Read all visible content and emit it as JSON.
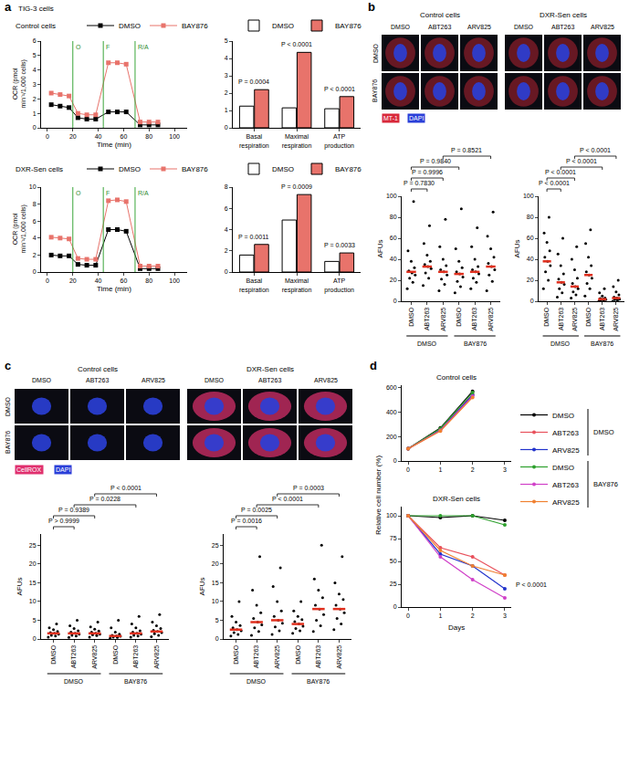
{
  "figure": {
    "panels": [
      {
        "letter": "a",
        "title": "TIG-3 cells"
      },
      {
        "letter": "b"
      },
      {
        "letter": "c"
      },
      {
        "letter": "d"
      }
    ],
    "image_grids": [
      {
        "groups": [
          "Control cells",
          "DXR-Sen cells"
        ],
        "columns": [
          "DMSO",
          "ABT263",
          "ARV825"
        ],
        "rows": [
          "DMSO",
          "BAY876"
        ],
        "stains": [
          {
            "text": "MT-1",
            "color": "#d8283a"
          },
          {
            "text": "DAPI",
            "color": "#2a3fd8"
          }
        ]
      },
      {
        "groups": [
          "Control cells",
          "DXR-Sen cells"
        ],
        "columns": [
          "DMSO",
          "ABT263",
          "ARV825"
        ],
        "rows": [
          "DMSO",
          "BAY876"
        ],
        "stains": [
          {
            "text": "CellROX",
            "color": "#e0306e"
          },
          {
            "text": "DAPI",
            "color": "#2a3fd8"
          }
        ]
      }
    ]
  },
  "chart_data": [
    {
      "type": "line",
      "title": "Control cells",
      "x": [
        3,
        10,
        17,
        24,
        31,
        38,
        48,
        55,
        62,
        73,
        80,
        87
      ],
      "xlim": [
        -5,
        110
      ],
      "xticks": [
        0,
        20,
        40,
        60,
        80,
        100
      ],
      "ylim": [
        0,
        6
      ],
      "yticks": [
        0,
        1,
        2,
        3,
        4,
        5,
        6
      ],
      "xlabel": "Time (min)",
      "ylabel": "OCR (pmol min⁻¹/1,000 cells)",
      "marker": "square",
      "legend": "top",
      "annotations": [
        {
          "x": 20,
          "text": "O"
        },
        {
          "x": 44,
          "text": "F"
        },
        {
          "x": 69,
          "text": "R/A"
        }
      ],
      "series": [
        {
          "name": "DMSO",
          "color": "#000000",
          "values": [
            1.6,
            1.5,
            1.4,
            0.7,
            0.6,
            0.6,
            1.1,
            1.1,
            1.1,
            0.2,
            0.2,
            0.2
          ]
        },
        {
          "name": "BAY876",
          "color": "#e8736b",
          "values": [
            2.4,
            2.3,
            2.2,
            1.0,
            0.9,
            0.9,
            4.5,
            4.5,
            4.4,
            0.4,
            0.4,
            0.4
          ]
        }
      ]
    },
    {
      "type": "line",
      "title": "DXR-Sen cells",
      "x": [
        3,
        10,
        17,
        24,
        31,
        38,
        48,
        55,
        62,
        73,
        80,
        87
      ],
      "xlim": [
        -5,
        110
      ],
      "xticks": [
        0,
        20,
        40,
        60,
        80,
        100
      ],
      "ylim": [
        0,
        10
      ],
      "yticks": [
        0,
        2,
        4,
        6,
        8,
        10
      ],
      "xlabel": "Time (min)",
      "ylabel": "OCR (pmol min⁻¹/1,000 cells)",
      "marker": "square",
      "legend": "top",
      "annotations": [
        {
          "x": 20,
          "text": "O"
        },
        {
          "x": 44,
          "text": "F"
        },
        {
          "x": 69,
          "text": "R/A"
        }
      ],
      "series": [
        {
          "name": "DMSO",
          "color": "#000000",
          "values": [
            2.0,
            1.9,
            1.9,
            0.9,
            0.8,
            0.8,
            5.0,
            5.0,
            4.8,
            0.4,
            0.4,
            0.4
          ]
        },
        {
          "name": "BAY876",
          "color": "#e8736b",
          "values": [
            4.1,
            4.0,
            3.9,
            1.6,
            1.5,
            1.5,
            8.4,
            8.5,
            8.3,
            0.7,
            0.7,
            0.7
          ]
        }
      ]
    },
    {
      "type": "bar",
      "categories": [
        "Basal respiration",
        "Maximal respiration",
        "ATP production"
      ],
      "ylim": [
        0,
        5
      ],
      "yticks": [
        0,
        1,
        2,
        3,
        4,
        5
      ],
      "legend": "top",
      "series": [
        {
          "name": "DMSO",
          "color": "#ffffff",
          "values": [
            1.25,
            1.15,
            1.1
          ]
        },
        {
          "name": "BAY876",
          "color": "#e8736b",
          "values": [
            2.2,
            4.35,
            1.8
          ]
        }
      ],
      "p_values": [
        "P = 0.0004",
        "P < 0.0001",
        "P < 0.0001"
      ]
    },
    {
      "type": "bar",
      "categories": [
        "Basal respiration",
        "Maximal respiration",
        "ATP production"
      ],
      "ylim": [
        0,
        8
      ],
      "yticks": [
        0,
        2,
        4,
        6,
        8
      ],
      "legend": "top",
      "series": [
        {
          "name": "DMSO",
          "color": "#ffffff",
          "values": [
            1.6,
            4.9,
            1.0
          ]
        },
        {
          "name": "BAY876",
          "color": "#e8736b",
          "values": [
            2.6,
            7.3,
            1.8
          ]
        }
      ],
      "p_values": [
        "P = 0.0011",
        "P = 0.0009",
        "P = 0.0033"
      ]
    },
    {
      "type": "dot",
      "categories": [
        "DMSO",
        "ABT263",
        "ARV825",
        "DMSO",
        "ABT263",
        "ARV825"
      ],
      "groups": [
        {
          "label": "DMSO",
          "from": 0,
          "to": 2
        },
        {
          "label": "BAY876",
          "from": 3,
          "to": 5
        }
      ],
      "ylabel": "AFUs",
      "ylim": [
        0,
        100
      ],
      "yticks": [
        0,
        20,
        40,
        60,
        80,
        100
      ],
      "color": "#000000",
      "points": [
        [
          12,
          18,
          22,
          25,
          27,
          29,
          32,
          38,
          48,
          95
        ],
        [
          15,
          22,
          27,
          31,
          33,
          35,
          38,
          44,
          55,
          72
        ],
        [
          10,
          16,
          21,
          25,
          28,
          30,
          34,
          40,
          52,
          78
        ],
        [
          8,
          14,
          19,
          23,
          26,
          28,
          32,
          38,
          50,
          88
        ],
        [
          12,
          18,
          22,
          26,
          28,
          30,
          33,
          40,
          52,
          70
        ],
        [
          10,
          19,
          25,
          30,
          33,
          36,
          42,
          50,
          62,
          85
        ]
      ],
      "medians": [
        28,
        33,
        28,
        26,
        28,
        33
      ],
      "comparisons": [
        {
          "from": 0,
          "to": 1,
          "text": "P = 0.7830"
        },
        {
          "from": 0,
          "to": 2,
          "text": "P = 0.9996"
        },
        {
          "from": 0,
          "to": 3,
          "text": "P = 0.9840"
        },
        {
          "from": 2,
          "to": 5,
          "text": "P = 0.8521"
        }
      ]
    },
    {
      "type": "dot",
      "categories": [
        "DMSO",
        "ABT263",
        "ARV825",
        "DMSO",
        "ABT263",
        "ARV825"
      ],
      "groups": [
        {
          "label": "DMSO",
          "from": 0,
          "to": 2
        },
        {
          "label": "BAY876",
          "from": 3,
          "to": 5
        }
      ],
      "ylabel": "AFUs",
      "ylim": [
        0,
        100
      ],
      "yticks": [
        0,
        20,
        40,
        60,
        80,
        100
      ],
      "color": "#000000",
      "points": [
        [
          12,
          20,
          28,
          34,
          38,
          42,
          48,
          56,
          65,
          80
        ],
        [
          4,
          8,
          12,
          16,
          18,
          21,
          26,
          34,
          45,
          60
        ],
        [
          3,
          6,
          9,
          12,
          14,
          17,
          22,
          30,
          40,
          52
        ],
        [
          5,
          12,
          17,
          22,
          25,
          28,
          34,
          42,
          55,
          68
        ],
        [
          0,
          0.5,
          1,
          1.5,
          2,
          2.5,
          3,
          5,
          8,
          12
        ],
        [
          0,
          1,
          1.5,
          2,
          3,
          4,
          6,
          9,
          14,
          20
        ]
      ],
      "medians": [
        38,
        18,
        14,
        25,
        2,
        3
      ],
      "comparisons": [
        {
          "from": 0,
          "to": 1,
          "text": "P < 0.0001"
        },
        {
          "from": 0,
          "to": 2,
          "text": "P < 0.0001"
        },
        {
          "from": 1,
          "to": 4,
          "text": "P < 0.0001"
        },
        {
          "from": 2,
          "to": 5,
          "text": "P < 0.0001"
        }
      ]
    },
    {
      "type": "dot",
      "categories": [
        "DMSO",
        "ABT263",
        "ARV825",
        "DMSO",
        "ABT263",
        "ARV825"
      ],
      "groups": [
        {
          "label": "DMSO",
          "from": 0,
          "to": 2
        },
        {
          "label": "BAY876",
          "from": 3,
          "to": 5
        }
      ],
      "ylabel": "AFUs",
      "ylim": [
        0,
        28
      ],
      "yticks": [
        0,
        5,
        10,
        15,
        20,
        25
      ],
      "color": "#000000",
      "points": [
        [
          0.5,
          0.8,
          1,
          1.3,
          1.5,
          1.7,
          2,
          2.5,
          3,
          4
        ],
        [
          0.4,
          0.8,
          1,
          1.3,
          1.5,
          1.8,
          2.2,
          2.8,
          3.5,
          5
        ],
        [
          0.5,
          0.9,
          1.1,
          1.3,
          1.5,
          1.8,
          2.1,
          2.6,
          3.2,
          4.5
        ],
        [
          0.2,
          0.4,
          0.5,
          0.7,
          0.8,
          1,
          1.3,
          1.8,
          3,
          5
        ],
        [
          0.5,
          0.8,
          1,
          1.3,
          1.5,
          1.8,
          2.2,
          3,
          4,
          6
        ],
        [
          0.6,
          1,
          1.4,
          1.7,
          2,
          2.3,
          2.8,
          3.5,
          4.5,
          6.5
        ]
      ],
      "medians": [
        1.5,
        1.5,
        1.5,
        0.8,
        1.5,
        2
      ],
      "comparisons": [
        {
          "from": 0,
          "to": 1,
          "text": "P > 0.9999"
        },
        {
          "from": 0,
          "to": 2,
          "text": "P = 0.9389"
        },
        {
          "from": 1,
          "to": 4,
          "text": "P = 0.0228"
        },
        {
          "from": 2,
          "to": 5,
          "text": "P < 0.0001"
        }
      ]
    },
    {
      "type": "dot",
      "categories": [
        "DMSO",
        "ABT263",
        "ARV825",
        "DMSO",
        "ABT263",
        "ARV825"
      ],
      "groups": [
        {
          "label": "DMSO",
          "from": 0,
          "to": 2
        },
        {
          "label": "BAY876",
          "from": 3,
          "to": 5
        }
      ],
      "ylabel": "AFUs",
      "ylim": [
        0,
        28
      ],
      "yticks": [
        0,
        5,
        10,
        15,
        20,
        25
      ],
      "color": "#000000",
      "points": [
        [
          0.8,
          1.2,
          1.7,
          2.2,
          2.5,
          3,
          3.6,
          4.5,
          6,
          10
        ],
        [
          1,
          2,
          3,
          3.8,
          4.5,
          5.5,
          7,
          9,
          13,
          22
        ],
        [
          1.2,
          2.2,
          3.2,
          4.2,
          5,
          6,
          7.5,
          10,
          14,
          19
        ],
        [
          1.5,
          2.2,
          2.8,
          3.4,
          4,
          4.6,
          5.2,
          6,
          7.5,
          10
        ],
        [
          2,
          3.5,
          5,
          6.5,
          8,
          9,
          11,
          13,
          16,
          25
        ],
        [
          2.5,
          4,
          5.5,
          7,
          8,
          9,
          10.5,
          12,
          15,
          22
        ]
      ],
      "medians": [
        2.5,
        4.5,
        5,
        4,
        8,
        8
      ],
      "comparisons": [
        {
          "from": 0,
          "to": 1,
          "text": "P = 0.0016"
        },
        {
          "from": 0,
          "to": 2,
          "text": "P = 0.0025"
        },
        {
          "from": 1,
          "to": 4,
          "text": "P < 0.0001"
        },
        {
          "from": 2,
          "to": 5,
          "text": "P = 0.0003"
        }
      ]
    },
    {
      "type": "line",
      "title": "Control cells",
      "x": [
        0,
        1,
        2
      ],
      "xlim": [
        -0.2,
        3.2
      ],
      "xticks": [
        0,
        1,
        2,
        3
      ],
      "ylim": [
        0,
        620
      ],
      "yticks": [
        0,
        200,
        400,
        600
      ],
      "ylabel": "Relative cell number (%)",
      "marker": "circle",
      "legend": "right",
      "legend_groups": [
        {
          "label": "DMSO",
          "from": 0,
          "to": 2
        },
        {
          "label": "BAY876",
          "from": 3,
          "to": 5
        }
      ],
      "series": [
        {
          "name": "DMSO",
          "color": "#000000",
          "values": [
            100,
            270,
            570
          ]
        },
        {
          "name": "ABT263",
          "color": "#e8505b",
          "values": [
            100,
            260,
            545
          ]
        },
        {
          "name": "ARV825",
          "color": "#2233cc",
          "values": [
            100,
            255,
            540
          ]
        },
        {
          "name": "DMSO",
          "color": "#2ca02c",
          "values": [
            100,
            265,
            560
          ]
        },
        {
          "name": "ABT263",
          "color": "#d040c8",
          "values": [
            100,
            250,
            530
          ]
        },
        {
          "name": "ARV825",
          "color": "#f08030",
          "values": [
            100,
            245,
            520
          ]
        }
      ]
    },
    {
      "type": "line",
      "title": "DXR-Sen cells",
      "x": [
        0,
        1,
        2,
        3
      ],
      "xlim": [
        -0.2,
        3.2
      ],
      "xticks": [
        0,
        1,
        2,
        3
      ],
      "ylim": [
        0,
        110
      ],
      "yticks": [
        0,
        25,
        50,
        75,
        100
      ],
      "xlabel": "Days",
      "marker": "circle",
      "annotations": [
        {
          "x": 3,
          "y": 25,
          "text": "P < 0.0001"
        }
      ],
      "series": [
        {
          "name": "DMSO",
          "color": "#000000",
          "values": [
            100,
            98,
            100,
            95
          ]
        },
        {
          "name": "ABT263",
          "color": "#e8505b",
          "values": [
            100,
            65,
            55,
            35
          ]
        },
        {
          "name": "ARV825",
          "color": "#2233cc",
          "values": [
            100,
            58,
            45,
            20
          ]
        },
        {
          "name": "DMSO",
          "color": "#2ca02c",
          "values": [
            100,
            100,
            100,
            90
          ]
        },
        {
          "name": "ABT263",
          "color": "#d040c8",
          "values": [
            100,
            55,
            30,
            10
          ]
        },
        {
          "name": "ARV825",
          "color": "#f08030",
          "values": [
            100,
            62,
            45,
            35
          ]
        }
      ]
    }
  ]
}
